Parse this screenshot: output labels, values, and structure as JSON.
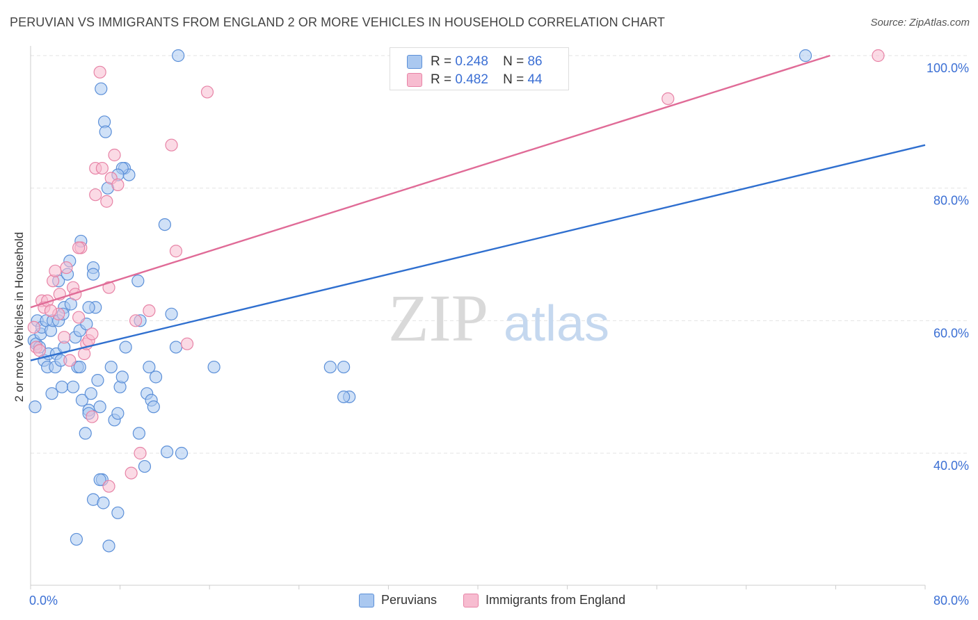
{
  "header": {
    "title": "PERUVIAN VS IMMIGRANTS FROM ENGLAND 2 OR MORE VEHICLES IN HOUSEHOLD CORRELATION CHART",
    "source": "Source: ZipAtlas.com"
  },
  "watermark": {
    "zip": "ZIP",
    "atlas": "atlas"
  },
  "legend": {
    "peruvians": {
      "r_label": "R =",
      "r_value": "0.248",
      "n_label": "N =",
      "n_value": "86"
    },
    "england": {
      "r_label": "R =",
      "r_value": "0.482",
      "n_label": "N =",
      "n_value": "44"
    }
  },
  "bottom_legend": {
    "peruvians": "Peruvians",
    "england": "Immigrants from England"
  },
  "colors": {
    "blue_fill": "#aac8f0",
    "blue_stroke": "#5b8fd8",
    "blue_line": "#2f6fcf",
    "pink_fill": "#f7bcd0",
    "pink_stroke": "#e783a6",
    "pink_line": "#e06b97",
    "tick_label": "#3b6fd4",
    "grid": "#e3e3e3"
  },
  "chart_data": {
    "type": "scatter",
    "title": "PERUVIAN VS IMMIGRANTS FROM ENGLAND 2 OR MORE VEHICLES IN HOUSEHOLD CORRELATION CHART",
    "xlabel": "",
    "ylabel": "2 or more Vehicles in Household",
    "xlim": [
      0,
      80
    ],
    "ylim": [
      18,
      101
    ],
    "x_tick_labels": [
      "0.0%",
      "80.0%"
    ],
    "y_ticks": [
      40,
      60,
      80,
      100
    ],
    "y_tick_labels": [
      "40.0%",
      "60.0%",
      "80.0%",
      "100.0%"
    ],
    "grid": true,
    "series": [
      {
        "name": "Peruvians",
        "trend": {
          "x": [
            0,
            80
          ],
          "y": [
            54,
            86.5
          ]
        },
        "points": [
          [
            0.3,
            57
          ],
          [
            0.5,
            56.5
          ],
          [
            0.4,
            47
          ],
          [
            0.8,
            56
          ],
          [
            0.6,
            60
          ],
          [
            0.9,
            58
          ],
          [
            1.0,
            59
          ],
          [
            1.2,
            54
          ],
          [
            1.4,
            60
          ],
          [
            1.5,
            53
          ],
          [
            1.6,
            55
          ],
          [
            1.8,
            58.5
          ],
          [
            1.9,
            49
          ],
          [
            2.0,
            60
          ],
          [
            2.2,
            53
          ],
          [
            2.3,
            55
          ],
          [
            2.5,
            66
          ],
          [
            2.5,
            60
          ],
          [
            2.7,
            54
          ],
          [
            2.8,
            50
          ],
          [
            3.0,
            56
          ],
          [
            3.0,
            62
          ],
          [
            3.3,
            67
          ],
          [
            3.5,
            69
          ],
          [
            3.6,
            62.5
          ],
          [
            3.8,
            50
          ],
          [
            4.0,
            57.5
          ],
          [
            4.2,
            53
          ],
          [
            4.4,
            58.5
          ],
          [
            4.4,
            53
          ],
          [
            4.6,
            48
          ],
          [
            4.9,
            43
          ],
          [
            5.0,
            59.5
          ],
          [
            5.2,
            46.5
          ],
          [
            5.4,
            49
          ],
          [
            5.6,
            68
          ],
          [
            5.6,
            67
          ],
          [
            5.8,
            62
          ],
          [
            6.0,
            51
          ],
          [
            6.2,
            47
          ],
          [
            6.4,
            36
          ],
          [
            7.2,
            53
          ],
          [
            7.5,
            45
          ],
          [
            7.8,
            46
          ],
          [
            8.0,
            50
          ],
          [
            8.2,
            51.5
          ],
          [
            8.4,
            83
          ],
          [
            8.8,
            82
          ],
          [
            9.6,
            66
          ],
          [
            9.8,
            60
          ],
          [
            10.2,
            38
          ],
          [
            10.4,
            49
          ],
          [
            10.6,
            53
          ],
          [
            10.8,
            48
          ],
          [
            11.0,
            47
          ],
          [
            11.2,
            51.5
          ],
          [
            12.0,
            74.5
          ],
          [
            12.6,
            61
          ],
          [
            13.0,
            56
          ],
          [
            16.4,
            53
          ],
          [
            5.6,
            33
          ],
          [
            6.5,
            32.5
          ],
          [
            7.8,
            31
          ],
          [
            4.1,
            27
          ],
          [
            7.0,
            26
          ],
          [
            8.5,
            56
          ],
          [
            9.7,
            43
          ],
          [
            13.5,
            40
          ],
          [
            28,
            53
          ],
          [
            28.5,
            48.5
          ],
          [
            28,
            48.5
          ],
          [
            8.2,
            83
          ],
          [
            5.2,
            46
          ],
          [
            26.8,
            53
          ],
          [
            12.2,
            40.2
          ],
          [
            13.2,
            100
          ],
          [
            6.2,
            36
          ],
          [
            6.3,
            95
          ],
          [
            6.6,
            90
          ],
          [
            6.7,
            88.5
          ],
          [
            6.9,
            80
          ],
          [
            7.8,
            82
          ],
          [
            4.5,
            72
          ],
          [
            5.2,
            62
          ],
          [
            69.3,
            100
          ],
          [
            2.9,
            61
          ]
        ]
      },
      {
        "name": "Immigrants from England",
        "trend": {
          "x": [
            0,
            71.5
          ],
          "y": [
            62,
            100
          ]
        },
        "points": [
          [
            0.3,
            59
          ],
          [
            0.5,
            56
          ],
          [
            0.8,
            55.5
          ],
          [
            1.0,
            63
          ],
          [
            1.2,
            62
          ],
          [
            1.5,
            63
          ],
          [
            2.0,
            66
          ],
          [
            2.2,
            67.5
          ],
          [
            2.5,
            61
          ],
          [
            2.6,
            64
          ],
          [
            3.0,
            57.5
          ],
          [
            3.2,
            68
          ],
          [
            3.5,
            54
          ],
          [
            3.8,
            65
          ],
          [
            4.0,
            64
          ],
          [
            4.3,
            60.5
          ],
          [
            4.5,
            71
          ],
          [
            4.8,
            55
          ],
          [
            5.0,
            56.5
          ],
          [
            5.2,
            57
          ],
          [
            5.5,
            45.5
          ],
          [
            5.5,
            58
          ],
          [
            5.8,
            83
          ],
          [
            5.8,
            79
          ],
          [
            6.2,
            97.5
          ],
          [
            6.4,
            83
          ],
          [
            6.8,
            78
          ],
          [
            7.0,
            65
          ],
          [
            7.2,
            81.5
          ],
          [
            7.5,
            85
          ],
          [
            7.8,
            80.5
          ],
          [
            9.0,
            37
          ],
          [
            9.4,
            60
          ],
          [
            9.8,
            40
          ],
          [
            10.6,
            61.5
          ],
          [
            12.6,
            86.5
          ],
          [
            13.0,
            70.5
          ],
          [
            14.0,
            56.5
          ],
          [
            15.8,
            94.5
          ],
          [
            57,
            93.5
          ],
          [
            75.8,
            100
          ],
          [
            1.8,
            61.5
          ],
          [
            4.3,
            71
          ],
          [
            7.0,
            35
          ]
        ]
      }
    ]
  }
}
